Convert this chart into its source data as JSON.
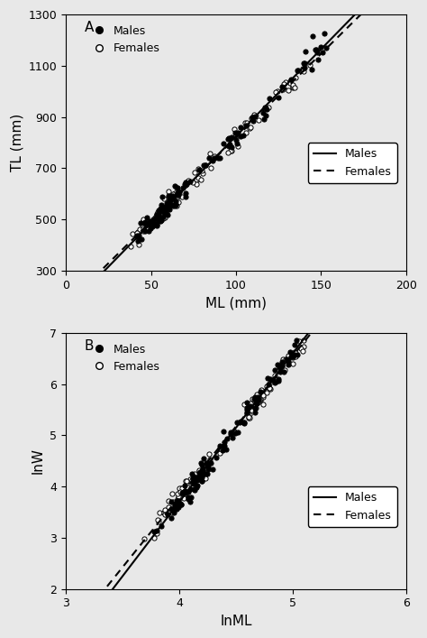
{
  "panel_A": {
    "label": "A",
    "xlabel": "ML (mm)",
    "ylabel": "TL (mm)",
    "xlim": [
      0,
      200
    ],
    "ylim": [
      300,
      1300
    ],
    "xticks": [
      0,
      50,
      100,
      150,
      200
    ],
    "yticks": [
      300,
      500,
      700,
      900,
      1100,
      1300
    ],
    "males_line": {
      "slope": 6.8,
      "intercept": 145
    },
    "females_line": {
      "slope": 6.55,
      "intercept": 165
    },
    "scatter_male_xlim": [
      42,
      155
    ],
    "scatter_female_xlim": [
      38,
      148
    ]
  },
  "panel_B": {
    "label": "B",
    "xlabel": "lnML",
    "ylabel": "lnW",
    "xlim": [
      3,
      6
    ],
    "ylim": [
      2,
      7
    ],
    "xticks": [
      3,
      4,
      5,
      6
    ],
    "yticks": [
      2,
      3,
      4,
      5,
      6,
      7
    ],
    "males_line": {
      "slope": 2.9,
      "intercept": -7.9
    },
    "females_line": {
      "slope": 2.75,
      "intercept": -7.2
    },
    "scatter_male_xlim": [
      3.65,
      5.05
    ],
    "scatter_female_xlim": [
      3.35,
      5.1
    ]
  },
  "marker_size": 14,
  "marker_lw": 0.7,
  "line_lw": 1.5,
  "font_size": 11,
  "label_font_size": 11,
  "tick_font_size": 9,
  "legend_font_size": 9,
  "bg_color": "#e8e8e8",
  "fig_color": "#e8e8e8"
}
